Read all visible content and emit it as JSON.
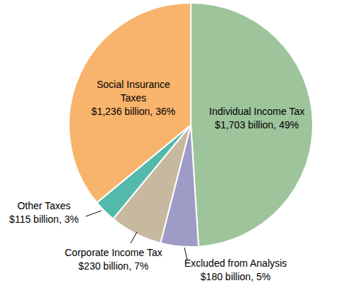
{
  "chart_data": {
    "type": "pie",
    "categories": [
      "Individual Income Tax",
      "Excluded from Analysis",
      "Corporate Income Tax",
      "Other Taxes",
      "Social Insurance Taxes"
    ],
    "values": [
      49,
      5,
      7,
      3,
      36
    ],
    "value_labels": [
      "$1,703 billion, 49%",
      "$180 billion, 5%",
      "$230 billion, 7%",
      "$115 billion, 3%",
      "$1,236 billion, 36%"
    ],
    "colors": [
      "#9dc49b",
      "#9e9bc6",
      "#c6b99f",
      "#53b9ab",
      "#f8b46c"
    ],
    "data_labels": true
  }
}
